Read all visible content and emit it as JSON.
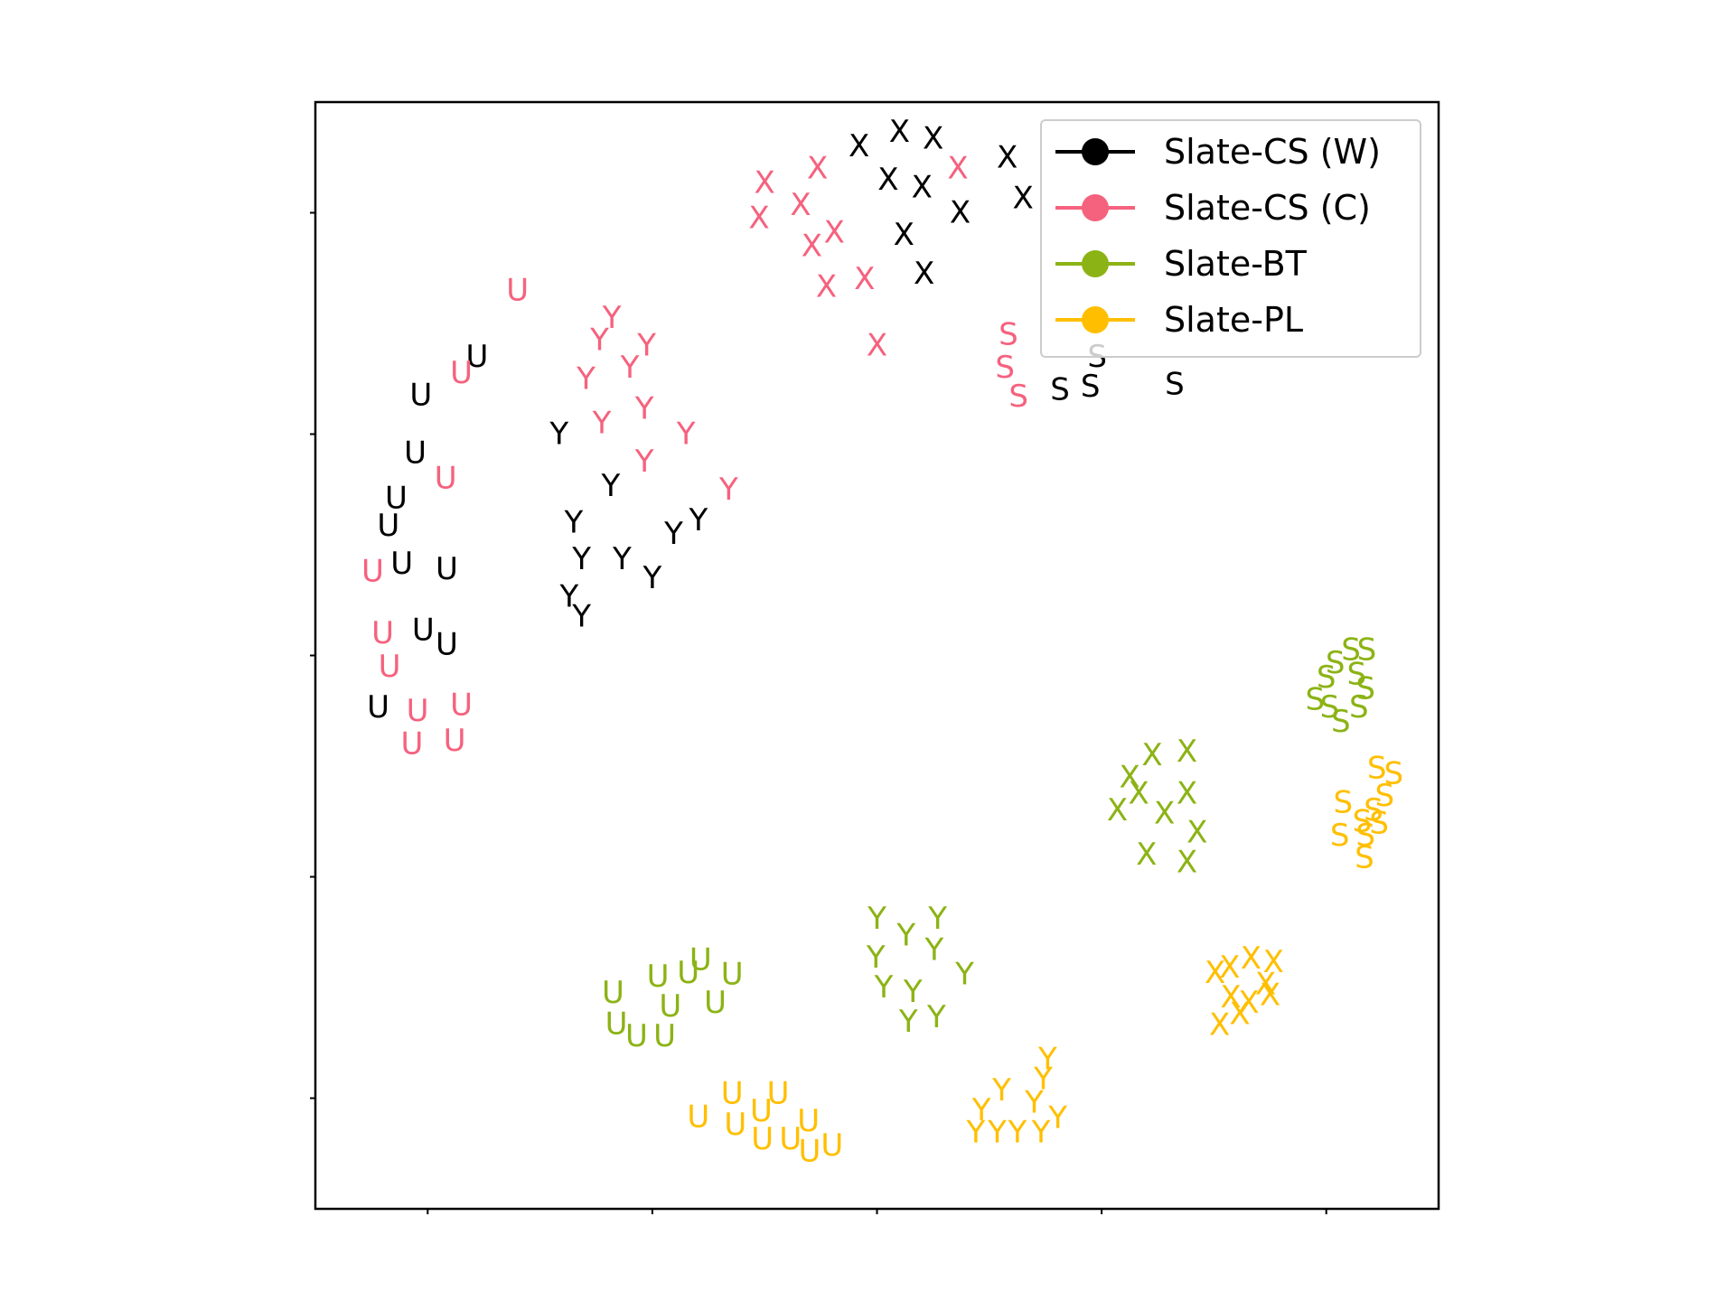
{
  "chart_data": {
    "type": "scatter",
    "title": "",
    "xlabel": "",
    "ylabel": "",
    "xlim": [
      0,
      100
    ],
    "ylim": [
      0,
      100
    ],
    "grid": false,
    "tick_labels_shown": false,
    "legend": {
      "placement": "top-right",
      "entries": [
        "Slate-CS (W)",
        "Slate-CS (C)",
        "Slate-BT",
        "Slate-PL"
      ]
    },
    "series": [
      {
        "name": "Slate-CS (W)",
        "color": "#000000",
        "points": [
          {
            "label": "X",
            "x": 48.4,
            "y": 96.0
          },
          {
            "label": "X",
            "x": 52.0,
            "y": 97.3
          },
          {
            "label": "X",
            "x": 55.0,
            "y": 96.7
          },
          {
            "label": "X",
            "x": 51.0,
            "y": 93.0
          },
          {
            "label": "X",
            "x": 54.0,
            "y": 92.3
          },
          {
            "label": "X",
            "x": 57.4,
            "y": 90.0
          },
          {
            "label": "X",
            "x": 61.6,
            "y": 95.0
          },
          {
            "label": "X",
            "x": 63.0,
            "y": 91.3
          },
          {
            "label": "X",
            "x": 52.4,
            "y": 88.0
          },
          {
            "label": "X",
            "x": 54.2,
            "y": 84.5
          },
          {
            "label": "S",
            "x": 66.3,
            "y": 74.0
          },
          {
            "label": "S",
            "x": 69.0,
            "y": 74.3
          },
          {
            "label": "S",
            "x": 69.6,
            "y": 77.0
          },
          {
            "label": "S",
            "x": 76.5,
            "y": 74.5
          },
          {
            "label": "U",
            "x": 14.4,
            "y": 77.0
          },
          {
            "label": "U",
            "x": 9.4,
            "y": 73.5
          },
          {
            "label": "U",
            "x": 8.9,
            "y": 68.3
          },
          {
            "label": "U",
            "x": 7.2,
            "y": 64.2
          },
          {
            "label": "U",
            "x": 6.5,
            "y": 61.7
          },
          {
            "label": "U",
            "x": 7.7,
            "y": 58.3
          },
          {
            "label": "U",
            "x": 11.7,
            "y": 57.8
          },
          {
            "label": "U",
            "x": 9.6,
            "y": 52.3
          },
          {
            "label": "U",
            "x": 11.7,
            "y": 51.0
          },
          {
            "label": "U",
            "x": 5.6,
            "y": 45.3
          },
          {
            "label": "Y",
            "x": 21.7,
            "y": 70.0
          },
          {
            "label": "Y",
            "x": 26.3,
            "y": 65.3
          },
          {
            "label": "Y",
            "x": 23.0,
            "y": 62.0
          },
          {
            "label": "Y",
            "x": 23.7,
            "y": 58.7
          },
          {
            "label": "Y",
            "x": 27.3,
            "y": 58.7
          },
          {
            "label": "Y",
            "x": 31.9,
            "y": 61.0
          },
          {
            "label": "Y",
            "x": 34.1,
            "y": 62.2
          },
          {
            "label": "Y",
            "x": 30.0,
            "y": 57.0
          },
          {
            "label": "Y",
            "x": 22.6,
            "y": 55.3
          },
          {
            "label": "Y",
            "x": 23.7,
            "y": 53.5
          }
        ]
      },
      {
        "name": "Slate-CS (C)",
        "color": "#f5627e",
        "points": [
          {
            "label": "X",
            "x": 40.0,
            "y": 92.7
          },
          {
            "label": "X",
            "x": 44.7,
            "y": 94.0
          },
          {
            "label": "X",
            "x": 39.5,
            "y": 89.5
          },
          {
            "label": "X",
            "x": 43.2,
            "y": 90.7
          },
          {
            "label": "X",
            "x": 44.2,
            "y": 87.0
          },
          {
            "label": "X",
            "x": 46.2,
            "y": 88.2
          },
          {
            "label": "X",
            "x": 45.5,
            "y": 83.3
          },
          {
            "label": "X",
            "x": 48.9,
            "y": 84.0
          },
          {
            "label": "X",
            "x": 57.2,
            "y": 94.0
          },
          {
            "label": "X",
            "x": 50.0,
            "y": 78.0
          },
          {
            "label": "S",
            "x": 61.7,
            "y": 79.0
          },
          {
            "label": "S",
            "x": 61.4,
            "y": 76.0
          },
          {
            "label": "S",
            "x": 62.6,
            "y": 73.4
          },
          {
            "label": "U",
            "x": 18.0,
            "y": 83.0
          },
          {
            "label": "U",
            "x": 13.0,
            "y": 75.5
          },
          {
            "label": "U",
            "x": 11.6,
            "y": 66.0
          },
          {
            "label": "U",
            "x": 5.1,
            "y": 57.6
          },
          {
            "label": "U",
            "x": 6.0,
            "y": 52.0
          },
          {
            "label": "U",
            "x": 6.6,
            "y": 49.0
          },
          {
            "label": "U",
            "x": 9.1,
            "y": 45.0
          },
          {
            "label": "U",
            "x": 13.0,
            "y": 45.5
          },
          {
            "label": "U",
            "x": 8.6,
            "y": 42.0
          },
          {
            "label": "U",
            "x": 12.4,
            "y": 42.3
          },
          {
            "label": "Y",
            "x": 26.4,
            "y": 80.5
          },
          {
            "label": "Y",
            "x": 25.3,
            "y": 78.5
          },
          {
            "label": "Y",
            "x": 29.5,
            "y": 78.0
          },
          {
            "label": "Y",
            "x": 24.1,
            "y": 75.0
          },
          {
            "label": "Y",
            "x": 28.0,
            "y": 76.0
          },
          {
            "label": "Y",
            "x": 25.5,
            "y": 71.0
          },
          {
            "label": "Y",
            "x": 29.3,
            "y": 72.3
          },
          {
            "label": "Y",
            "x": 33.0,
            "y": 70.0
          },
          {
            "label": "Y",
            "x": 29.3,
            "y": 67.5
          },
          {
            "label": "Y",
            "x": 36.8,
            "y": 65.0
          }
        ]
      },
      {
        "name": "Slate-BT",
        "color": "#8cb315",
        "points": [
          {
            "label": "S",
            "x": 92.2,
            "y": 50.5
          },
          {
            "label": "S",
            "x": 93.6,
            "y": 50.5
          },
          {
            "label": "S",
            "x": 90.8,
            "y": 49.3
          },
          {
            "label": "S",
            "x": 90.0,
            "y": 48.0
          },
          {
            "label": "S",
            "x": 92.7,
            "y": 48.3
          },
          {
            "label": "S",
            "x": 93.5,
            "y": 47.0
          },
          {
            "label": "S",
            "x": 89.0,
            "y": 46.0
          },
          {
            "label": "S",
            "x": 90.3,
            "y": 45.3
          },
          {
            "label": "S",
            "x": 91.3,
            "y": 44.0
          },
          {
            "label": "S",
            "x": 92.9,
            "y": 45.3
          },
          {
            "label": "X",
            "x": 74.5,
            "y": 41.0
          },
          {
            "label": "X",
            "x": 77.6,
            "y": 41.3
          },
          {
            "label": "X",
            "x": 72.5,
            "y": 39.0
          },
          {
            "label": "X",
            "x": 73.3,
            "y": 37.5
          },
          {
            "label": "X",
            "x": 77.6,
            "y": 37.5
          },
          {
            "label": "X",
            "x": 71.4,
            "y": 36.0
          },
          {
            "label": "X",
            "x": 75.6,
            "y": 35.7
          },
          {
            "label": "X",
            "x": 78.5,
            "y": 34.0
          },
          {
            "label": "X",
            "x": 74.0,
            "y": 32.0
          },
          {
            "label": "X",
            "x": 77.6,
            "y": 31.3
          },
          {
            "label": "U",
            "x": 34.3,
            "y": 22.5
          },
          {
            "label": "U",
            "x": 30.5,
            "y": 21.0
          },
          {
            "label": "U",
            "x": 33.2,
            "y": 21.3
          },
          {
            "label": "U",
            "x": 37.1,
            "y": 21.2
          },
          {
            "label": "U",
            "x": 26.5,
            "y": 19.5
          },
          {
            "label": "U",
            "x": 31.6,
            "y": 18.3
          },
          {
            "label": "U",
            "x": 35.6,
            "y": 18.6
          },
          {
            "label": "U",
            "x": 26.8,
            "y": 16.7
          },
          {
            "label": "U",
            "x": 28.6,
            "y": 15.6
          },
          {
            "label": "U",
            "x": 31.1,
            "y": 15.6
          },
          {
            "label": "Y",
            "x": 50.0,
            "y": 26.2
          },
          {
            "label": "Y",
            "x": 52.6,
            "y": 24.7
          },
          {
            "label": "Y",
            "x": 55.4,
            "y": 26.2
          },
          {
            "label": "Y",
            "x": 49.9,
            "y": 22.7
          },
          {
            "label": "Y",
            "x": 55.1,
            "y": 23.4
          },
          {
            "label": "Y",
            "x": 57.8,
            "y": 21.2
          },
          {
            "label": "Y",
            "x": 50.6,
            "y": 20.0
          },
          {
            "label": "Y",
            "x": 53.2,
            "y": 19.6
          },
          {
            "label": "Y",
            "x": 52.8,
            "y": 16.9
          },
          {
            "label": "Y",
            "x": 55.3,
            "y": 17.3
          }
        ]
      },
      {
        "name": "Slate-PL",
        "color": "#ffbf00",
        "points": [
          {
            "label": "S",
            "x": 94.5,
            "y": 39.8
          },
          {
            "label": "S",
            "x": 96.0,
            "y": 39.3
          },
          {
            "label": "S",
            "x": 91.5,
            "y": 36.7
          },
          {
            "label": "S",
            "x": 95.2,
            "y": 37.3
          },
          {
            "label": "S",
            "x": 94.2,
            "y": 36.0
          },
          {
            "label": "S",
            "x": 93.2,
            "y": 35.0
          },
          {
            "label": "S",
            "x": 94.7,
            "y": 34.8
          },
          {
            "label": "S",
            "x": 91.2,
            "y": 33.7
          },
          {
            "label": "S",
            "x": 93.5,
            "y": 33.7
          },
          {
            "label": "S",
            "x": 93.4,
            "y": 31.7
          },
          {
            "label": "X",
            "x": 81.4,
            "y": 21.8
          },
          {
            "label": "X",
            "x": 83.3,
            "y": 22.6
          },
          {
            "label": "X",
            "x": 85.3,
            "y": 22.3
          },
          {
            "label": "X",
            "x": 80.1,
            "y": 21.3
          },
          {
            "label": "X",
            "x": 84.6,
            "y": 20.3
          },
          {
            "label": "X",
            "x": 81.5,
            "y": 19.1
          },
          {
            "label": "X",
            "x": 83.1,
            "y": 18.6
          },
          {
            "label": "X",
            "x": 85.0,
            "y": 19.3
          },
          {
            "label": "X",
            "x": 82.3,
            "y": 17.6
          },
          {
            "label": "X",
            "x": 80.5,
            "y": 16.6
          },
          {
            "label": "U",
            "x": 37.1,
            "y": 10.4
          },
          {
            "label": "U",
            "x": 41.2,
            "y": 10.4
          },
          {
            "label": "U",
            "x": 34.1,
            "y": 8.3
          },
          {
            "label": "U",
            "x": 39.7,
            "y": 8.8
          },
          {
            "label": "U",
            "x": 37.4,
            "y": 7.6
          },
          {
            "label": "U",
            "x": 43.9,
            "y": 7.9
          },
          {
            "label": "U",
            "x": 39.8,
            "y": 6.3
          },
          {
            "label": "U",
            "x": 42.3,
            "y": 6.3
          },
          {
            "label": "U",
            "x": 44.0,
            "y": 5.2
          },
          {
            "label": "U",
            "x": 46.0,
            "y": 5.7
          },
          {
            "label": "Y",
            "x": 65.2,
            "y": 13.5
          },
          {
            "label": "Y",
            "x": 64.8,
            "y": 11.7
          },
          {
            "label": "Y",
            "x": 61.1,
            "y": 10.7
          },
          {
            "label": "Y",
            "x": 64.0,
            "y": 9.6
          },
          {
            "label": "Y",
            "x": 59.3,
            "y": 8.9
          },
          {
            "label": "Y",
            "x": 66.1,
            "y": 8.2
          },
          {
            "label": "Y",
            "x": 58.8,
            "y": 6.9
          },
          {
            "label": "Y",
            "x": 60.7,
            "y": 6.9
          },
          {
            "label": "Y",
            "x": 62.5,
            "y": 6.9
          },
          {
            "label": "Y",
            "x": 64.6,
            "y": 6.9
          }
        ]
      }
    ]
  }
}
